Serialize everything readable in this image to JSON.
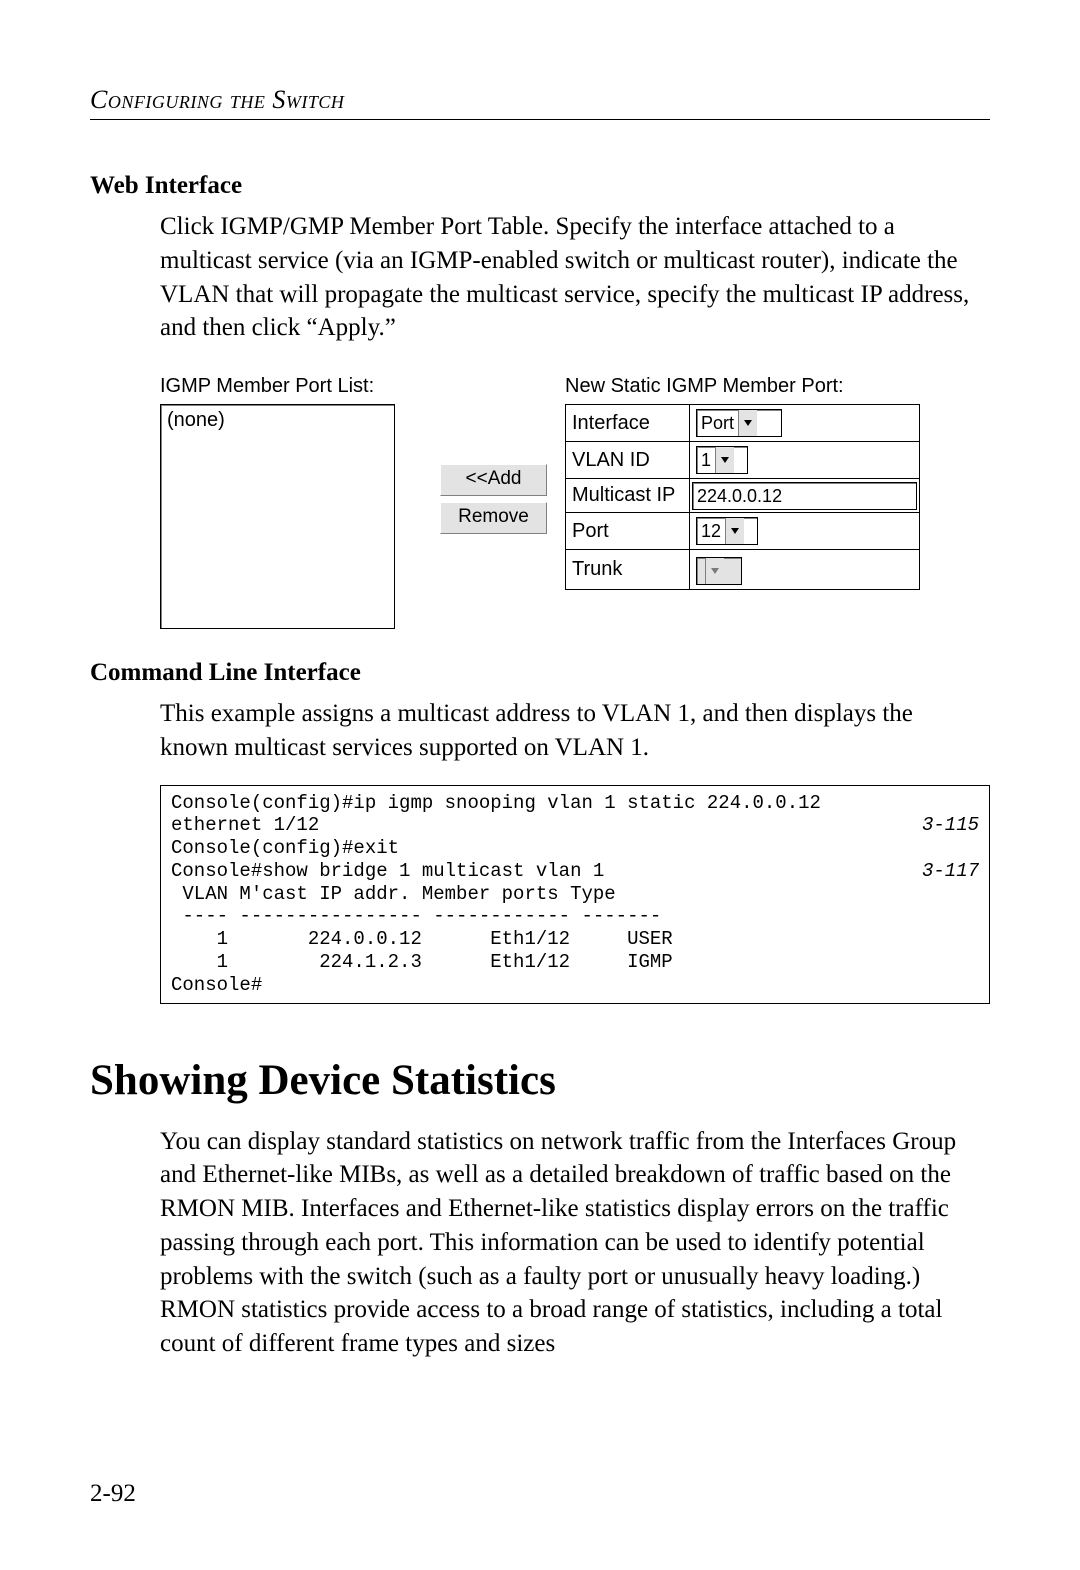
{
  "running_head": "Configuring the Switch",
  "page_number": "2-92",
  "web_interface": {
    "heading": "Web Interface",
    "paragraph": "Click IGMP/GMP Member Port Table. Specify the interface attached to a multicast service (via an IGMP-enabled switch or multicast router), indicate the VLAN that will propagate the multicast service, specify the multicast IP address, and then click “Apply.”"
  },
  "ui": {
    "list_title": "IGMP Member Port List:",
    "list_content": "(none)",
    "form_title": "New Static IGMP Member Port:",
    "buttons": {
      "add": "<<Add",
      "remove": "Remove"
    },
    "rows": {
      "interface": {
        "label": "Interface",
        "value": "Port"
      },
      "vlan": {
        "label": "VLAN ID",
        "value": "1"
      },
      "mcast": {
        "label": "Multicast IP",
        "value": "224.0.0.12"
      },
      "port": {
        "label": "Port",
        "value": "12"
      },
      "trunk": {
        "label": "Trunk",
        "value": ""
      }
    }
  },
  "cli": {
    "heading": "Command Line Interface",
    "paragraph": "This example assigns a multicast address to VLAN 1, and then displays the known multicast services supported on VLAN 1.",
    "lines": [
      {
        "text": "Console(config)#ip igmp snooping vlan 1 static 224.0.0.12"
      },
      {
        "text": "ethernet 1/12",
        "ref": "3-115"
      },
      {
        "text": "Console(config)#exit"
      },
      {
        "text": "Console#show bridge 1 multicast vlan 1",
        "ref": "3-117"
      },
      {
        "text": " VLAN M'cast IP addr. Member ports Type"
      },
      {
        "text": " ---- ---------------- ------------ -------"
      },
      {
        "text": "    1       224.0.0.12      Eth1/12     USER"
      },
      {
        "text": "    1        224.1.2.3      Eth1/12     IGMP"
      },
      {
        "text": "Console#"
      }
    ]
  },
  "stats": {
    "heading": "Showing Device Statistics",
    "paragraph": "You can display standard statistics on network traffic from the Interfaces Group and Ethernet-like MIBs, as well as a detailed breakdown of traffic based on the RMON MIB. Interfaces and Ethernet-like statistics display errors on the traffic passing through each port. This information can be used to identify potential problems with the switch (such as a faulty port or unusually heavy loading.) RMON statistics provide access to a broad range of statistics, including a total count of different frame types and sizes"
  }
}
